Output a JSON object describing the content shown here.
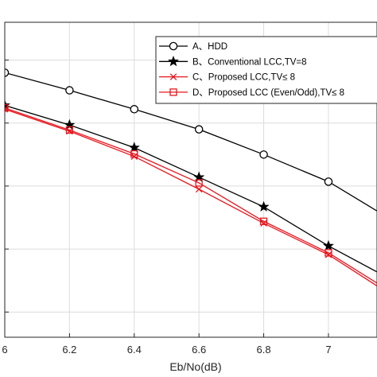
{
  "chart_data": {
    "type": "line",
    "xlabel": "Eb/No(dB)",
    "ylabel": "",
    "xlim": [
      6.0,
      7.15
    ],
    "ylim_log10": [
      -5.4,
      -0.4
    ],
    "y_scale": "log",
    "grid": true,
    "legend_placement": "top-right",
    "x_ticks": [
      6.0,
      6.2,
      6.4,
      6.6,
      6.8,
      7.0
    ],
    "x_tick_labels": [
      "6",
      "6.2",
      "6.4",
      "6.6",
      "6.8",
      "7"
    ],
    "series": [
      {
        "name": "A、HDD",
        "color": "#000000",
        "marker": "circle",
        "x": [
          6.0,
          6.2,
          6.4,
          6.6,
          6.8,
          7.0,
          7.2
        ],
        "y_log10": [
          -1.2,
          -1.48,
          -1.78,
          -2.1,
          -2.5,
          -2.93,
          -3.55
        ]
      },
      {
        "name": "B、Conventional LCC,TV=8",
        "color": "#000000",
        "marker": "star",
        "x": [
          6.0,
          6.2,
          6.4,
          6.6,
          6.8,
          7.0,
          7.2
        ],
        "y_log10": [
          -1.72,
          -2.03,
          -2.39,
          -2.86,
          -3.33,
          -3.95,
          -4.5
        ]
      },
      {
        "name": "C、Proposed LCC,TV≤ 8",
        "color": "#e8141c",
        "marker": "x",
        "x": [
          6.0,
          6.2,
          6.4,
          6.6,
          6.8,
          7.0,
          7.2
        ],
        "y_log10": [
          -1.78,
          -2.13,
          -2.53,
          -3.05,
          -3.59,
          -4.09,
          -4.75
        ]
      },
      {
        "name": "D、Proposed LCC (Even/Odd),TV≤ 8",
        "color": "#e8141c",
        "marker": "square",
        "x": [
          6.0,
          6.2,
          6.4,
          6.6,
          6.8,
          7.0,
          7.2
        ],
        "y_log10": [
          -1.76,
          -2.11,
          -2.49,
          -2.95,
          -3.56,
          -4.06,
          -4.7
        ]
      }
    ]
  }
}
